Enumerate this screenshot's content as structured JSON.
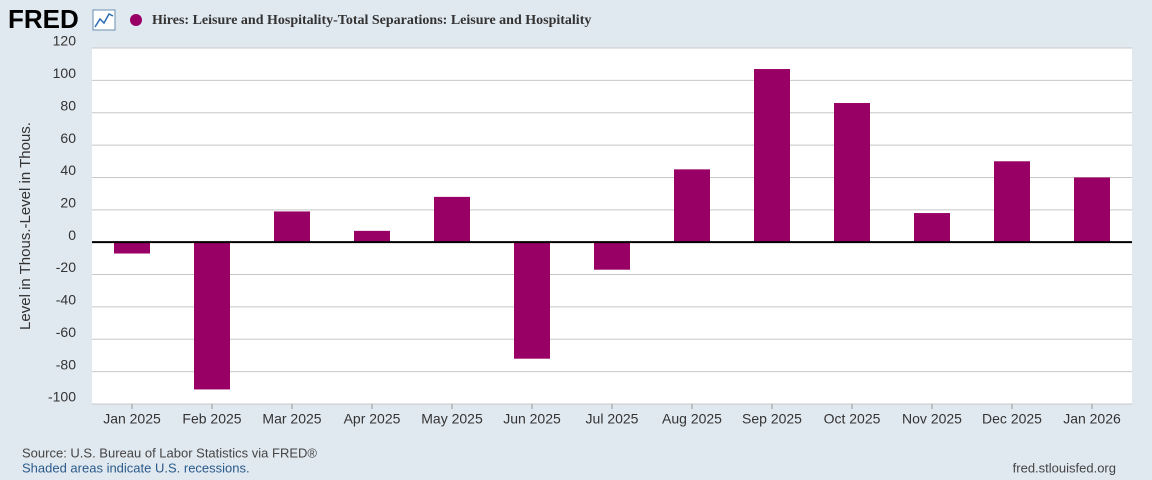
{
  "logo": "FRED",
  "chart_data": {
    "type": "bar",
    "categories": [
      "Jan 2025",
      "Feb 2025",
      "Mar 2025",
      "Apr 2025",
      "May 2025",
      "Jun 2025",
      "Jul 2025",
      "Aug 2025",
      "Sep 2025",
      "Oct 2025",
      "Nov 2025",
      "Dec 2025",
      "Jan 2026"
    ],
    "series": [
      {
        "name": "Hires: Leisure and Hospitality-Total Separations: Leisure and Hospitality",
        "color": "#990066",
        "values": [
          -7,
          -91,
          19,
          7,
          28,
          -72,
          -17,
          45,
          107,
          86,
          18,
          50,
          40
        ]
      }
    ],
    "y_label": "Level in Thous.-Level in Thous.",
    "ylim": [
      -100,
      120
    ],
    "yticks": [
      -100,
      -80,
      -60,
      -40,
      -20,
      0,
      20,
      40,
      60,
      80,
      100,
      120
    ],
    "grid": true
  },
  "footer": {
    "source": "Source: U.S. Bureau of Labor Statistics via FRED®",
    "note": "Shaded areas indicate U.S. recessions.",
    "url": "fred.stlouisfed.org"
  }
}
